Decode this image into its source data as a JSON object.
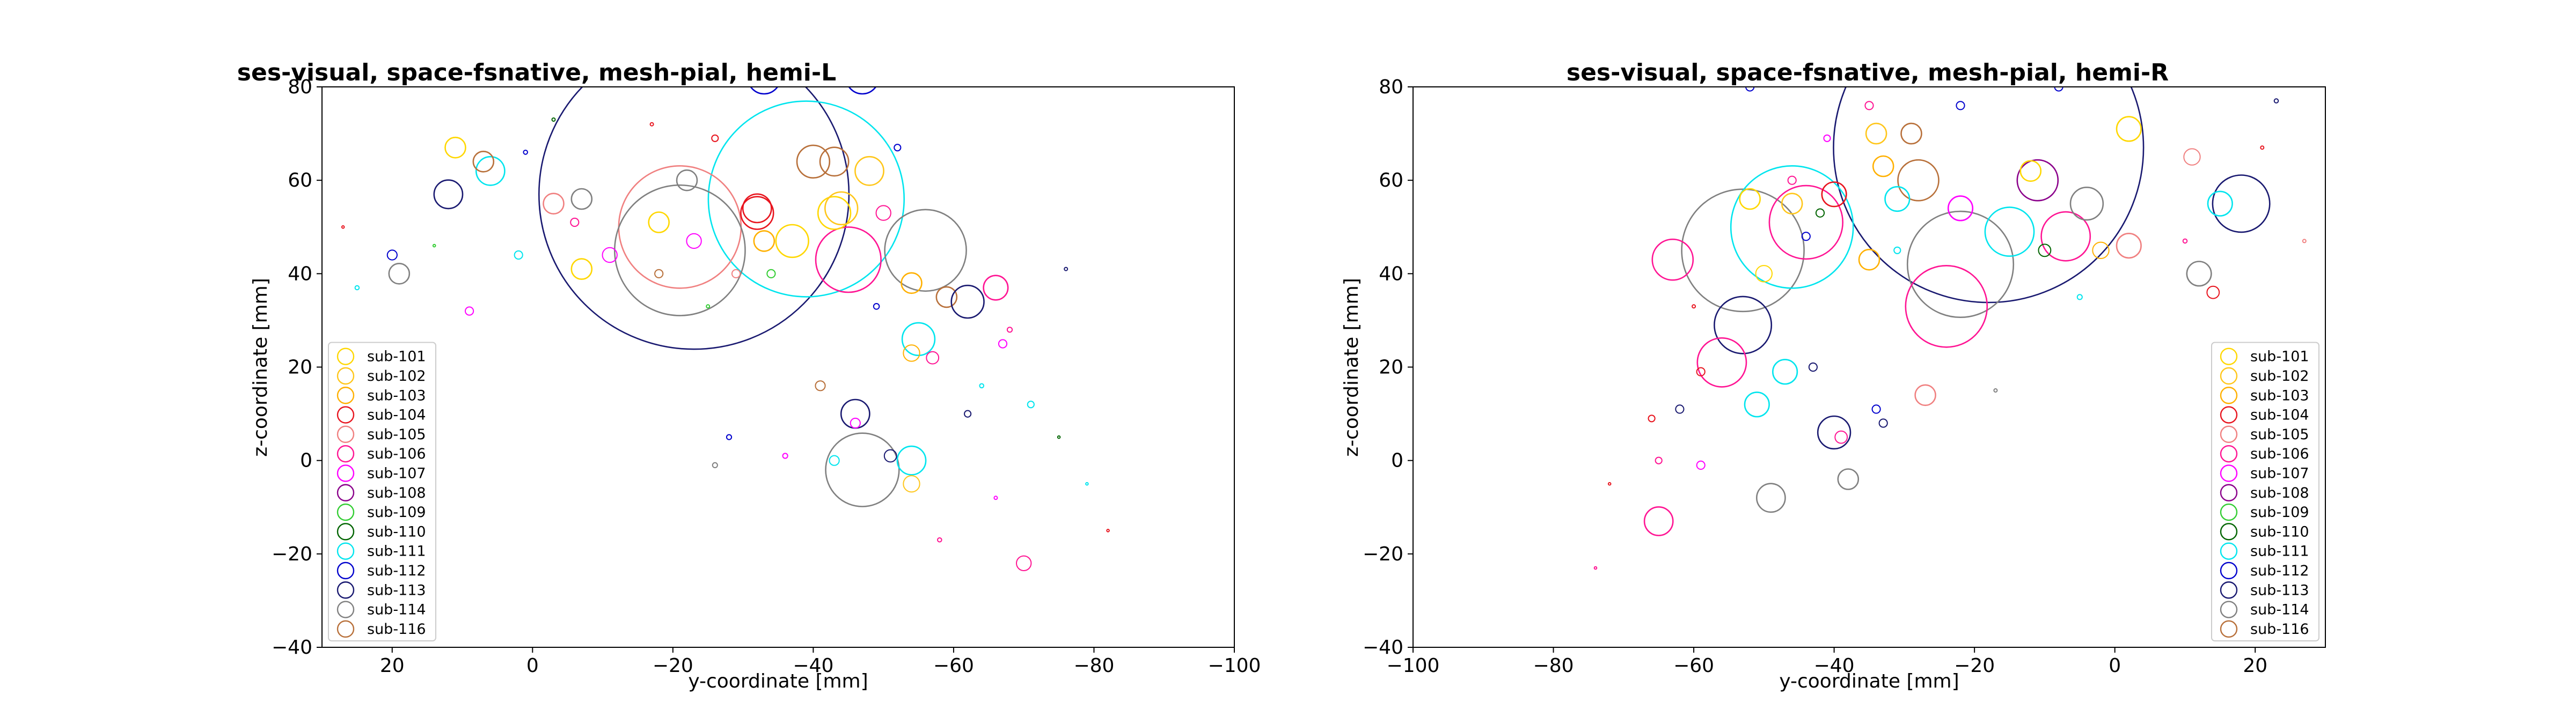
{
  "figure": {
    "type": "scatter",
    "marker_style": "hollow circles, marker size varies per point"
  },
  "colors": {
    "sub-101": "#FFD700",
    "sub-102": "#FFC61A",
    "sub-103": "#FFB000",
    "sub-104": "#E8141E",
    "sub-105": "#F08080",
    "sub-106": "#FF1493",
    "sub-107": "#FF00FF",
    "sub-108": "#8B008B",
    "sub-109": "#32CD32",
    "sub-110": "#006400",
    "sub-111": "#00E5EE",
    "sub-112": "#0000CD",
    "sub-113": "#191970",
    "sub-114": "#808080",
    "sub-116": "#B8703A"
  },
  "chart_data": [
    {
      "type": "scatter",
      "title": "ses-visual, space-fsnative, mesh-pial, hemi-L",
      "xlabel": "y-coordinate [mm]",
      "ylabel": "z-coordinate [mm]",
      "xlim": [
        30,
        -100
      ],
      "ylim": [
        -40,
        80
      ],
      "x_reversed": true,
      "xticks": [
        20,
        0,
        -20,
        -40,
        -60,
        -80,
        -100
      ],
      "yticks": [
        80,
        60,
        40,
        20,
        0,
        -20,
        -40
      ],
      "xtick_labels": [
        "20",
        "0",
        "−20",
        "−40",
        "−60",
        "−80",
        "−100"
      ],
      "ytick_labels": [
        "80",
        "60",
        "40",
        "20",
        "0",
        "−20",
        "−40"
      ],
      "grid": false,
      "legend_position": "lower-left",
      "legend": [
        "sub-101",
        "sub-102",
        "sub-103",
        "sub-104",
        "sub-105",
        "sub-106",
        "sub-107",
        "sub-108",
        "sub-109",
        "sub-110",
        "sub-111",
        "sub-112",
        "sub-113",
        "sub-114",
        "sub-116"
      ],
      "points": [
        {
          "x": -23,
          "y": 57,
          "s": 38,
          "c": "sub-113"
        },
        {
          "x": -39,
          "y": 56,
          "s": 24,
          "c": "sub-111"
        },
        {
          "x": -21,
          "y": 50,
          "s": 15,
          "c": "sub-105"
        },
        {
          "x": -21,
          "y": 45,
          "s": 16,
          "c": "sub-114"
        },
        {
          "x": -56,
          "y": 45,
          "s": 10,
          "c": "sub-114"
        },
        {
          "x": -45,
          "y": 43,
          "s": 8,
          "c": "sub-106"
        },
        {
          "x": -47,
          "y": -2,
          "s": 9,
          "c": "sub-114"
        },
        {
          "x": -46,
          "y": 10,
          "s": 3.5,
          "c": "sub-113"
        },
        {
          "x": -32,
          "y": 54,
          "s": 3.5,
          "c": "sub-104"
        },
        {
          "x": -43,
          "y": 64,
          "s": 3.5,
          "c": "sub-116"
        },
        {
          "x": -48,
          "y": 62,
          "s": 3.5,
          "c": "sub-102"
        },
        {
          "x": -43,
          "y": 53,
          "s": 4,
          "c": "sub-101"
        },
        {
          "x": -33,
          "y": 47,
          "s": 2.5,
          "c": "sub-103"
        },
        {
          "x": -18,
          "y": 51,
          "s": 2.5,
          "c": "sub-101"
        },
        {
          "x": -22,
          "y": 60,
          "s": 2.5,
          "c": "sub-114"
        },
        {
          "x": 12,
          "y": 57,
          "s": 3.5,
          "c": "sub-113"
        },
        {
          "x": 6,
          "y": 62,
          "s": 3.5,
          "c": "sub-111"
        },
        {
          "x": 11,
          "y": 67,
          "s": 2.5,
          "c": "sub-101"
        },
        {
          "x": 7,
          "y": 64,
          "s": 2.5,
          "c": "sub-116"
        },
        {
          "x": -7,
          "y": 56,
          "s": 2.5,
          "c": "sub-114"
        },
        {
          "x": -3,
          "y": 55,
          "s": 2.5,
          "c": "sub-105"
        },
        {
          "x": 19,
          "y": 40,
          "s": 2.5,
          "c": "sub-114"
        },
        {
          "x": 20,
          "y": 44,
          "s": 1.2,
          "c": "sub-112"
        },
        {
          "x": -7,
          "y": 41,
          "s": 2.5,
          "c": "sub-101"
        },
        {
          "x": -59,
          "y": 35,
          "s": 2.5,
          "c": "sub-116"
        },
        {
          "x": -62,
          "y": 34,
          "s": 4,
          "c": "sub-113"
        },
        {
          "x": -66,
          "y": 37,
          "s": 3,
          "c": "sub-106"
        },
        {
          "x": -55,
          "y": 26,
          "s": 4,
          "c": "sub-111"
        },
        {
          "x": -54,
          "y": 38,
          "s": 2.5,
          "c": "sub-103"
        },
        {
          "x": -54,
          "y": 23,
          "s": 2,
          "c": "sub-103"
        },
        {
          "x": -54,
          "y": 0,
          "s": 3.5,
          "c": "sub-111"
        },
        {
          "x": -54,
          "y": -5,
          "s": 2,
          "c": "sub-102"
        },
        {
          "x": -51,
          "y": 1,
          "s": 1.5,
          "c": "sub-113"
        },
        {
          "x": -57,
          "y": 22,
          "s": 1.5,
          "c": "sub-106"
        },
        {
          "x": -70,
          "y": -22,
          "s": 1.8,
          "c": "sub-106"
        },
        {
          "x": -28,
          "y": 5,
          "s": 0.6,
          "c": "sub-112"
        },
        {
          "x": -62,
          "y": 10,
          "s": 0.8,
          "c": "sub-113"
        },
        {
          "x": -71,
          "y": 12,
          "s": 0.8,
          "c": "sub-111"
        },
        {
          "x": -67,
          "y": 25,
          "s": 1,
          "c": "sub-107"
        },
        {
          "x": -36,
          "y": 1,
          "s": 0.6,
          "c": "sub-107"
        },
        {
          "x": -43,
          "y": 0,
          "s": 1.2,
          "c": "sub-111"
        },
        {
          "x": -46,
          "y": 8,
          "s": 1.2,
          "c": "sub-107"
        },
        {
          "x": -41,
          "y": 16,
          "s": 1.2,
          "c": "sub-116"
        },
        {
          "x": -34,
          "y": 40,
          "s": 1,
          "c": "sub-109"
        },
        {
          "x": -37,
          "y": 47,
          "s": 4,
          "c": "sub-101"
        },
        {
          "x": -44,
          "y": 54,
          "s": 4,
          "c": "sub-102"
        },
        {
          "x": -32,
          "y": 53,
          "s": 4,
          "c": "sub-104"
        },
        {
          "x": -40,
          "y": 64,
          "s": 4,
          "c": "sub-116"
        },
        {
          "x": -33,
          "y": 82,
          "s": 4,
          "c": "sub-112"
        },
        {
          "x": -47,
          "y": 82,
          "s": 4,
          "c": "sub-112"
        },
        {
          "x": -50,
          "y": 53,
          "s": 1.8,
          "c": "sub-106"
        },
        {
          "x": -6,
          "y": 51,
          "s": 1,
          "c": "sub-106"
        },
        {
          "x": 2,
          "y": 44,
          "s": 1,
          "c": "sub-111"
        },
        {
          "x": -11,
          "y": 44,
          "s": 1.8,
          "c": "sub-107"
        },
        {
          "x": -23,
          "y": 47,
          "s": 1.8,
          "c": "sub-107"
        },
        {
          "x": 9,
          "y": 32,
          "s": 1,
          "c": "sub-107"
        },
        {
          "x": -29,
          "y": 40,
          "s": 1,
          "c": "sub-105"
        },
        {
          "x": -18,
          "y": 40,
          "s": 1,
          "c": "sub-116"
        },
        {
          "x": -26,
          "y": 69,
          "s": 0.8,
          "c": "sub-104"
        },
        {
          "x": -52,
          "y": 67,
          "s": 0.8,
          "c": "sub-112"
        },
        {
          "x": -76,
          "y": 41,
          "s": 0.4,
          "c": "sub-113"
        },
        {
          "x": -68,
          "y": 28,
          "s": 0.6,
          "c": "sub-106"
        },
        {
          "x": -64,
          "y": 16,
          "s": 0.5,
          "c": "sub-111"
        },
        {
          "x": -75,
          "y": 5,
          "s": 0.3,
          "c": "sub-110"
        },
        {
          "x": -79,
          "y": -5,
          "s": 0.3,
          "c": "sub-111"
        },
        {
          "x": -82,
          "y": -15,
          "s": 0.3,
          "c": "sub-104"
        },
        {
          "x": -66,
          "y": -8,
          "s": 0.4,
          "c": "sub-107"
        },
        {
          "x": -58,
          "y": -17,
          "s": 0.5,
          "c": "sub-106"
        },
        {
          "x": -26,
          "y": -1,
          "s": 0.6,
          "c": "sub-114"
        },
        {
          "x": 1,
          "y": 66,
          "s": 0.5,
          "c": "sub-112"
        },
        {
          "x": -3,
          "y": 73,
          "s": 0.4,
          "c": "sub-110"
        },
        {
          "x": -17,
          "y": 72,
          "s": 0.4,
          "c": "sub-104"
        },
        {
          "x": -25,
          "y": 33,
          "s": 0.4,
          "c": "sub-109"
        },
        {
          "x": 27,
          "y": 50,
          "s": 0.3,
          "c": "sub-104"
        },
        {
          "x": 25,
          "y": 37,
          "s": 0.5,
          "c": "sub-111"
        },
        {
          "x": 14,
          "y": 46,
          "s": 0.3,
          "c": "sub-109"
        },
        {
          "x": -49,
          "y": 33,
          "s": 0.7,
          "c": "sub-112"
        }
      ]
    },
    {
      "type": "scatter",
      "title": "ses-visual, space-fsnative, mesh-pial, hemi-R",
      "xlabel": "y-coordinate [mm]",
      "ylabel": "z-coordinate [mm]",
      "xlim": [
        -100,
        30
      ],
      "ylim": [
        -40,
        80
      ],
      "x_reversed": false,
      "xticks": [
        -100,
        -80,
        -60,
        -40,
        -20,
        0,
        20
      ],
      "yticks": [
        80,
        60,
        40,
        20,
        0,
        -20,
        -40
      ],
      "xtick_labels": [
        "−100",
        "−80",
        "−60",
        "−40",
        "−20",
        "0",
        "20"
      ],
      "ytick_labels": [
        "80",
        "60",
        "40",
        "20",
        "0",
        "−20",
        "−40"
      ],
      "grid": false,
      "legend_position": "lower-right",
      "legend": [
        "sub-101",
        "sub-102",
        "sub-103",
        "sub-104",
        "sub-105",
        "sub-106",
        "sub-107",
        "sub-108",
        "sub-109",
        "sub-110",
        "sub-111",
        "sub-112",
        "sub-113",
        "sub-114",
        "sub-116"
      ],
      "points": [
        {
          "x": -18,
          "y": 67,
          "s": 38,
          "c": "sub-113"
        },
        {
          "x": -53,
          "y": 45,
          "s": 15,
          "c": "sub-114"
        },
        {
          "x": -46,
          "y": 50,
          "s": 15,
          "c": "sub-111"
        },
        {
          "x": -22,
          "y": 42,
          "s": 13,
          "c": "sub-114"
        },
        {
          "x": -24,
          "y": 33,
          "s": 10,
          "c": "sub-106"
        },
        {
          "x": -44,
          "y": 51,
          "s": 9,
          "c": "sub-106"
        },
        {
          "x": -53,
          "y": 29,
          "s": 7,
          "c": "sub-113"
        },
        {
          "x": -56,
          "y": 21,
          "s": 6,
          "c": "sub-106"
        },
        {
          "x": -63,
          "y": 43,
          "s": 5,
          "c": "sub-106"
        },
        {
          "x": -65,
          "y": -13,
          "s": 3.5,
          "c": "sub-106"
        },
        {
          "x": -49,
          "y": -8,
          "s": 3.5,
          "c": "sub-114"
        },
        {
          "x": -40,
          "y": 6,
          "s": 4,
          "c": "sub-113"
        },
        {
          "x": -47,
          "y": 19,
          "s": 3,
          "c": "sub-111"
        },
        {
          "x": -51,
          "y": 12,
          "s": 3,
          "c": "sub-111"
        },
        {
          "x": -38,
          "y": -4,
          "s": 2.5,
          "c": "sub-114"
        },
        {
          "x": -27,
          "y": 14,
          "s": 2.5,
          "c": "sub-105"
        },
        {
          "x": -28,
          "y": 60,
          "s": 5,
          "c": "sub-116"
        },
        {
          "x": -11,
          "y": 60,
          "s": 5,
          "c": "sub-108"
        },
        {
          "x": -15,
          "y": 49,
          "s": 6,
          "c": "sub-111"
        },
        {
          "x": -7,
          "y": 48,
          "s": 6,
          "c": "sub-106"
        },
        {
          "x": 18,
          "y": 55,
          "s": 7,
          "c": "sub-113"
        },
        {
          "x": -4,
          "y": 55,
          "s": 4,
          "c": "sub-114"
        },
        {
          "x": -31,
          "y": 56,
          "s": 3,
          "c": "sub-111"
        },
        {
          "x": -40,
          "y": 57,
          "s": 3,
          "c": "sub-104"
        },
        {
          "x": -22,
          "y": 54,
          "s": 3,
          "c": "sub-107"
        },
        {
          "x": 2,
          "y": 71,
          "s": 3,
          "c": "sub-101"
        },
        {
          "x": 15,
          "y": 55,
          "s": 3,
          "c": "sub-111"
        },
        {
          "x": 12,
          "y": 40,
          "s": 3,
          "c": "sub-114"
        },
        {
          "x": -35,
          "y": 43,
          "s": 2.5,
          "c": "sub-103"
        },
        {
          "x": 2,
          "y": 46,
          "s": 3,
          "c": "sub-105"
        },
        {
          "x": -46,
          "y": 55,
          "s": 2.5,
          "c": "sub-102"
        },
        {
          "x": -52,
          "y": 56,
          "s": 2.5,
          "c": "sub-101"
        },
        {
          "x": -34,
          "y": 70,
          "s": 2.5,
          "c": "sub-102"
        },
        {
          "x": -12,
          "y": 62,
          "s": 2.5,
          "c": "sub-101"
        },
        {
          "x": -33,
          "y": 63,
          "s": 2.5,
          "c": "sub-103"
        },
        {
          "x": -29,
          "y": 70,
          "s": 2.5,
          "c": "sub-116"
        },
        {
          "x": -2,
          "y": 45,
          "s": 2,
          "c": "sub-103"
        },
        {
          "x": 11,
          "y": 65,
          "s": 2,
          "c": "sub-105"
        },
        {
          "x": 14,
          "y": 36,
          "s": 1.5,
          "c": "sub-104"
        },
        {
          "x": -10,
          "y": 45,
          "s": 1.5,
          "c": "sub-110"
        },
        {
          "x": -50,
          "y": 40,
          "s": 2,
          "c": "sub-101"
        },
        {
          "x": -39,
          "y": 5,
          "s": 1.5,
          "c": "sub-106"
        },
        {
          "x": -43,
          "y": 20,
          "s": 1,
          "c": "sub-113"
        },
        {
          "x": -34,
          "y": 11,
          "s": 1,
          "c": "sub-112"
        },
        {
          "x": -33,
          "y": 8,
          "s": 1,
          "c": "sub-113"
        },
        {
          "x": -42,
          "y": 53,
          "s": 1,
          "c": "sub-110"
        },
        {
          "x": -44,
          "y": 48,
          "s": 1,
          "c": "sub-112"
        },
        {
          "x": -46,
          "y": 60,
          "s": 1,
          "c": "sub-106"
        },
        {
          "x": -52,
          "y": 80,
          "s": 1,
          "c": "sub-112"
        },
        {
          "x": -35,
          "y": 76,
          "s": 1,
          "c": "sub-106"
        },
        {
          "x": -22,
          "y": 76,
          "s": 1,
          "c": "sub-112"
        },
        {
          "x": -8,
          "y": 80,
          "s": 1,
          "c": "sub-112"
        },
        {
          "x": -59,
          "y": 19,
          "s": 1,
          "c": "sub-104"
        },
        {
          "x": -62,
          "y": 11,
          "s": 1,
          "c": "sub-113"
        },
        {
          "x": -66,
          "y": 9,
          "s": 0.8,
          "c": "sub-104"
        },
        {
          "x": -65,
          "y": 0,
          "s": 0.8,
          "c": "sub-106"
        },
        {
          "x": -59,
          "y": -1,
          "s": 1,
          "c": "sub-107"
        },
        {
          "x": -41,
          "y": 69,
          "s": 0.8,
          "c": "sub-107"
        },
        {
          "x": -31,
          "y": 45,
          "s": 0.8,
          "c": "sub-111"
        },
        {
          "x": -17,
          "y": 15,
          "s": 0.4,
          "c": "sub-114"
        },
        {
          "x": -60,
          "y": 33,
          "s": 0.4,
          "c": "sub-104"
        },
        {
          "x": -72,
          "y": -5,
          "s": 0.3,
          "c": "sub-104"
        },
        {
          "x": -74,
          "y": -23,
          "s": 0.3,
          "c": "sub-106"
        },
        {
          "x": -5,
          "y": 35,
          "s": 0.6,
          "c": "sub-111"
        },
        {
          "x": 27,
          "y": 47,
          "s": 0.4,
          "c": "sub-105"
        },
        {
          "x": 23,
          "y": 77,
          "s": 0.5,
          "c": "sub-113"
        },
        {
          "x": 21,
          "y": 67,
          "s": 0.4,
          "c": "sub-104"
        },
        {
          "x": 10,
          "y": 47,
          "s": 0.5,
          "c": "sub-106"
        }
      ]
    }
  ]
}
